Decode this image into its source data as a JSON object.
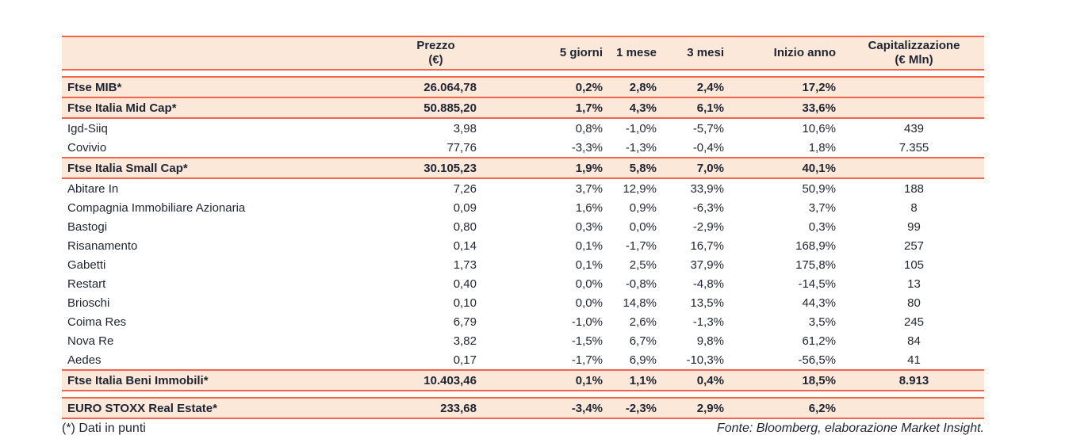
{
  "table": {
    "columns": [
      {
        "label": ""
      },
      {
        "label": "Prezzo\n(€)"
      },
      {
        "label": "5 giorni"
      },
      {
        "label": "1 mese"
      },
      {
        "label": "3 mesi"
      },
      {
        "label": "Inizio anno"
      },
      {
        "label": "Capitalizzazione\n(€ Mln)"
      }
    ],
    "rows": [
      {
        "name": "Ftse MIB*",
        "prezzo": "26.064,78",
        "g5": "0,2%",
        "m1": "2,8%",
        "m3": "2,4%",
        "ytd": "17,2%",
        "cap": "",
        "highlight": true
      },
      {
        "name": "Ftse Italia Mid Cap*",
        "prezzo": "50.885,20",
        "g5": "1,7%",
        "m1": "4,3%",
        "m3": "6,1%",
        "ytd": "33,6%",
        "cap": "",
        "highlight": true
      },
      {
        "name": "Igd-Siiq",
        "prezzo": "3,98",
        "g5": "0,8%",
        "m1": "-1,0%",
        "m3": "-5,7%",
        "ytd": "10,6%",
        "cap": "439",
        "highlight": false
      },
      {
        "name": "Covivio",
        "prezzo": "77,76",
        "g5": "-3,3%",
        "m1": "-1,3%",
        "m3": "-0,4%",
        "ytd": "1,8%",
        "cap": "7.355",
        "highlight": false
      },
      {
        "name": "Ftse Italia Small Cap*",
        "prezzo": "30.105,23",
        "g5": "1,9%",
        "m1": "5,8%",
        "m3": "7,0%",
        "ytd": "40,1%",
        "cap": "",
        "highlight": true
      },
      {
        "name": "Abitare In",
        "prezzo": "7,26",
        "g5": "3,7%",
        "m1": "12,9%",
        "m3": "33,9%",
        "ytd": "50,9%",
        "cap": "188",
        "highlight": false
      },
      {
        "name": "Compagnia Immobiliare Azionaria",
        "prezzo": "0,09",
        "g5": "1,6%",
        "m1": "0,9%",
        "m3": "-6,3%",
        "ytd": "3,7%",
        "cap": "8",
        "highlight": false
      },
      {
        "name": "Bastogi",
        "prezzo": "0,80",
        "g5": "0,3%",
        "m1": "0,0%",
        "m3": "-2,9%",
        "ytd": "0,3%",
        "cap": "99",
        "highlight": false
      },
      {
        "name": "Risanamento",
        "prezzo": "0,14",
        "g5": "0,1%",
        "m1": "-1,7%",
        "m3": "16,7%",
        "ytd": "168,9%",
        "cap": "257",
        "highlight": false
      },
      {
        "name": "Gabetti",
        "prezzo": "1,73",
        "g5": "0,1%",
        "m1": "2,5%",
        "m3": "37,9%",
        "ytd": "175,8%",
        "cap": "105",
        "highlight": false
      },
      {
        "name": "Restart",
        "prezzo": "0,40",
        "g5": "0,0%",
        "m1": "-0,8%",
        "m3": "-4,8%",
        "ytd": "-14,5%",
        "cap": "13",
        "highlight": false
      },
      {
        "name": "Brioschi",
        "prezzo": "0,10",
        "g5": "0,0%",
        "m1": "14,8%",
        "m3": "13,5%",
        "ytd": "44,3%",
        "cap": "80",
        "highlight": false
      },
      {
        "name": "Coima Res",
        "prezzo": "6,79",
        "g5": "-1,0%",
        "m1": "2,6%",
        "m3": "-1,3%",
        "ytd": "3,5%",
        "cap": "245",
        "highlight": false
      },
      {
        "name": "Nova Re",
        "prezzo": "3,82",
        "g5": "-1,5%",
        "m1": "6,7%",
        "m3": "9,8%",
        "ytd": "61,2%",
        "cap": "84",
        "highlight": false
      },
      {
        "name": "Aedes",
        "prezzo": "0,17",
        "g5": "-1,7%",
        "m1": "6,9%",
        "m3": "-10,3%",
        "ytd": "-56,5%",
        "cap": "41",
        "highlight": false
      },
      {
        "name": "Ftse Italia Beni Immobili*",
        "prezzo": "10.403,46",
        "g5": "0,1%",
        "m1": "1,1%",
        "m3": "0,4%",
        "ytd": "18,5%",
        "cap": "8.913",
        "highlight": true
      }
    ],
    "euro_row": {
      "name": "EURO STOXX Real Estate*",
      "prezzo": "233,68",
      "g5": "-3,4%",
      "m1": "-2,3%",
      "m3": "2,9%",
      "ytd": "6,2%",
      "cap": "",
      "highlight": true
    }
  },
  "footer": {
    "footnote": "(*) Dati in punti",
    "source": "Fonte: Bloomberg, elaborazione Market Insight."
  },
  "colors": {
    "accent_coral": "#F0664C",
    "row_highlight_peach": "#FBE8D9",
    "text_ink": "#1F2433"
  }
}
